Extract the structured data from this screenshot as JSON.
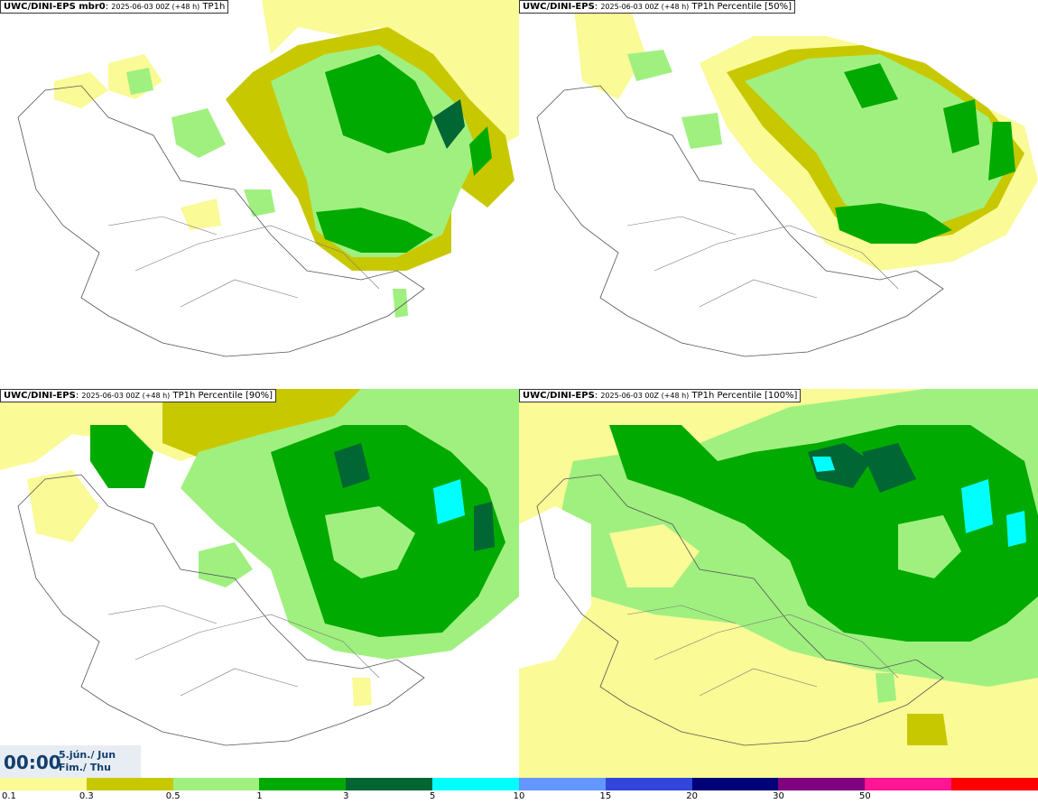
{
  "panels": [
    {
      "model": "UWC/DINI-EPS mbr0",
      "run": "2025-06-03 00Z (+48 h)",
      "product": "TP1h"
    },
    {
      "model": "UWC/DINI-EPS",
      "run": "2025-06-03 00Z (+48 h)",
      "product": "TP1h Percentile [50%]"
    },
    {
      "model": "UWC/DINI-EPS",
      "run": "2025-06-03 00Z (+48 h)",
      "product": "TP1h Percentile [90%]"
    },
    {
      "model": "UWC/DINI-EPS",
      "run": "2025-06-03 00Z (+48 h)",
      "product": "TP1h Percentile [100%]"
    }
  ],
  "valid_time": {
    "time": "00:00",
    "date_line1": "5.jún./ Jun",
    "date_line2": "Fim./ Thu"
  },
  "legend": {
    "colors": [
      "#fafa96",
      "#c8c800",
      "#a0f080",
      "#00aa00",
      "#006633",
      "#00ffff",
      "#6496ff",
      "#3246dc",
      "#000078",
      "#800080",
      "#ff1493",
      "#ff0000"
    ],
    "labels": [
      "0.1",
      "0.3",
      "0.5",
      "1",
      "3",
      "5",
      "10",
      "15",
      "20",
      "30",
      "50"
    ]
  }
}
